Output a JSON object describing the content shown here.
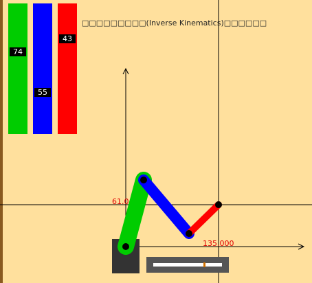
{
  "title": "□□□□□□□□□(Inverse Kinematics)□□□□□□",
  "bars": [
    {
      "name": "green",
      "value": "74",
      "color": "#00cc00",
      "level": 0.37
    },
    {
      "name": "blue",
      "value": "55",
      "color": "#0000ff",
      "level": 0.68
    },
    {
      "name": "red",
      "value": "43",
      "color": "#ff0000",
      "level": 0.27
    }
  ],
  "angle_label": "61.0",
  "distance_label": "135.000",
  "slider": {
    "position": 0.73
  },
  "colors": {
    "background": "#ffe09d",
    "base": "#333333",
    "link1": "#00cc00",
    "link2": "#0000ff",
    "link3": "#ff0000",
    "labels": "#e00000"
  }
}
